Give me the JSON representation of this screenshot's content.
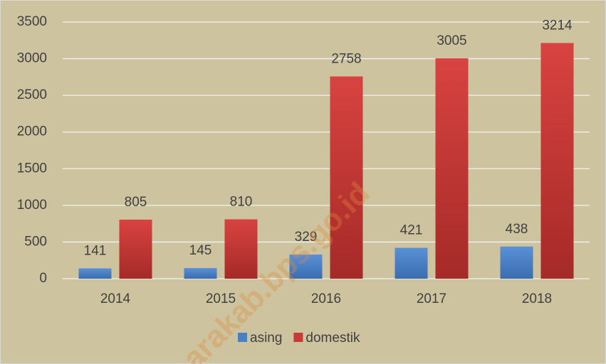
{
  "chart_data": {
    "type": "bar",
    "categories": [
      "2014",
      "2015",
      "2016",
      "2017",
      "2018"
    ],
    "series": [
      {
        "name": "asing",
        "color": "#4a7fc4",
        "values": [
          141,
          145,
          329,
          421,
          438
        ]
      },
      {
        "name": "domestik",
        "color": "#c63a37",
        "values": [
          805,
          810,
          2758,
          3005,
          3214
        ]
      }
    ],
    "ylim": [
      0,
      3500
    ],
    "yticks": [
      0,
      500,
      1000,
      1500,
      2000,
      2500,
      3000,
      3500
    ],
    "grid": true,
    "legend": "bottom",
    "watermark": "arakab.bps.go.id"
  }
}
